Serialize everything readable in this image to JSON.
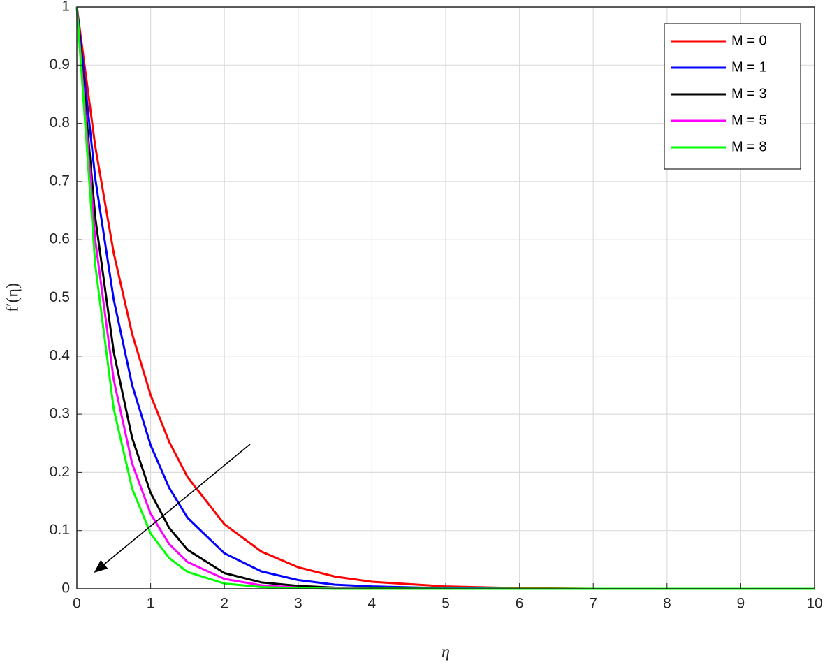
{
  "chart_data": {
    "type": "line",
    "x_label": "η",
    "y_label": "f′(η)",
    "x": [
      0,
      0.25,
      0.5,
      0.75,
      1,
      1.25,
      1.5,
      2,
      2.5,
      3,
      3.5,
      4,
      5,
      6,
      7,
      8,
      9,
      10
    ],
    "series": [
      {
        "name": "M = 0",
        "color": "#ff0000",
        "values": [
          1,
          0.76,
          0.577,
          0.438,
          0.333,
          0.253,
          0.192,
          0.111,
          0.064,
          0.037,
          0.021,
          0.012,
          0.004,
          0.001,
          0,
          0,
          0,
          0
        ]
      },
      {
        "name": "M = 1",
        "color": "#0000ff",
        "values": [
          1,
          0.705,
          0.497,
          0.35,
          0.247,
          0.174,
          0.122,
          0.061,
          0.03,
          0.015,
          0.007,
          0.004,
          0.001,
          0,
          0,
          0,
          0,
          0
        ]
      },
      {
        "name": "M = 3",
        "color": "#000000",
        "values": [
          1,
          0.638,
          0.407,
          0.259,
          0.165,
          0.105,
          0.067,
          0.027,
          0.011,
          0.005,
          0.002,
          0.001,
          0,
          0,
          0,
          0,
          0,
          0
        ]
      },
      {
        "name": "M = 5",
        "color": "#ff00ff",
        "values": [
          1,
          0.599,
          0.359,
          0.215,
          0.129,
          0.077,
          0.046,
          0.017,
          0.006,
          0.002,
          0.001,
          0,
          0,
          0,
          0,
          0,
          0,
          0
        ]
      },
      {
        "name": "M = 8",
        "color": "#00ff00",
        "values": [
          1,
          0.556,
          0.309,
          0.172,
          0.095,
          0.053,
          0.029,
          0.009,
          0.003,
          0.001,
          0,
          0,
          0,
          0,
          0,
          0,
          0,
          0
        ]
      }
    ],
    "xlim": [
      0,
      10
    ],
    "xticks": [
      0,
      1,
      2,
      3,
      4,
      5,
      6,
      7,
      8,
      9,
      10
    ],
    "ylim": [
      0,
      1
    ],
    "yticks": [
      0,
      0.1,
      0.2,
      0.3,
      0.4,
      0.5,
      0.6,
      0.7,
      0.8,
      0.9,
      1
    ],
    "grid": true,
    "legend": "upper right"
  }
}
